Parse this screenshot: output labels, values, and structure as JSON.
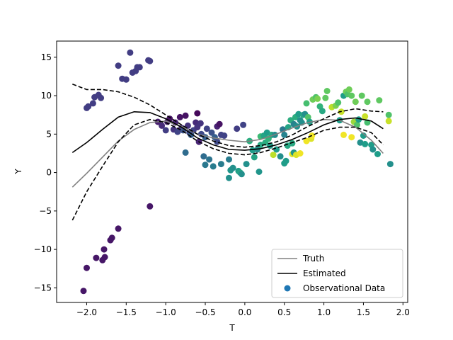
{
  "chart_data": {
    "type": "scatter",
    "xlabel": "T",
    "ylabel": "Y",
    "xlim": [
      -2.38,
      2.06
    ],
    "ylim": [
      -16.9,
      17.1
    ],
    "xticks": [
      -2.0,
      -1.5,
      -1.0,
      -0.5,
      0.0,
      0.5,
      1.0,
      1.5,
      2.0
    ],
    "xtick_labels": [
      "−2.0",
      "−1.5",
      "−1.0",
      "−0.5",
      "0.0",
      "0.5",
      "1.0",
      "1.5",
      "2.0"
    ],
    "yticks": [
      -15,
      -10,
      -5,
      0,
      5,
      10,
      15
    ],
    "ytick_labels": [
      "−15",
      "−10",
      "−5",
      "0",
      "5",
      "10",
      "15"
    ],
    "grid": false,
    "legend_position": "lower-right",
    "x_grid": [
      -2.18,
      -2.0,
      -1.8,
      -1.6,
      -1.4,
      -1.2,
      -1.0,
      -0.8,
      -0.6,
      -0.4,
      -0.2,
      0.0,
      0.2,
      0.4,
      0.6,
      0.8,
      1.0,
      1.2,
      1.4,
      1.6,
      1.75
    ],
    "series": [
      {
        "name": "Truth",
        "kind": "line",
        "color": "#808080",
        "style": "solid",
        "y": [
          -1.9,
          -0.1,
          2.0,
          4.1,
          5.6,
          6.5,
          6.7,
          6.0,
          5.0,
          4.5,
          4.2,
          4.0,
          4.3,
          5.0,
          5.8,
          6.5,
          6.9,
          6.8,
          5.9,
          4.2,
          2.5
        ]
      },
      {
        "name": "Estimated",
        "kind": "line",
        "color": "#000000",
        "style": "solid",
        "y": [
          2.6,
          3.9,
          5.6,
          7.2,
          7.9,
          7.8,
          7.0,
          5.9,
          4.5,
          3.6,
          3.0,
          2.9,
          3.1,
          3.6,
          4.3,
          5.2,
          6.2,
          6.9,
          7.1,
          6.7,
          5.7
        ]
      },
      {
        "name": "",
        "kind": "line",
        "color": "#000000",
        "style": "dashed",
        "y": [
          11.5,
          10.8,
          10.8,
          10.5,
          9.8,
          8.8,
          7.5,
          6.2,
          5.0,
          4.1,
          3.5,
          3.3,
          3.5,
          4.0,
          4.9,
          6.0,
          7.0,
          7.9,
          8.3,
          8.0,
          7.9
        ]
      },
      {
        "name": "",
        "kind": "line",
        "color": "#000000",
        "style": "dashed",
        "y": [
          -6.2,
          -2.5,
          0.8,
          4.0,
          6.2,
          6.9,
          6.5,
          5.5,
          4.1,
          3.1,
          2.5,
          2.3,
          2.6,
          3.2,
          3.9,
          4.6,
          5.5,
          5.9,
          5.9,
          5.2,
          3.6
        ]
      }
    ],
    "scatter": {
      "name": "Observational Data",
      "legend_color": "#1f77b4",
      "colormap": "viridis",
      "points": [
        [
          -2.0,
          8.4,
          0.18
        ],
        [
          -1.98,
          8.6,
          0.18
        ],
        [
          -1.92,
          9.0,
          0.18
        ],
        [
          -1.9,
          9.8,
          0.18
        ],
        [
          -1.85,
          10.1,
          0.18
        ],
        [
          -1.82,
          9.7,
          0.18
        ],
        [
          -1.6,
          13.9,
          0.18
        ],
        [
          -1.55,
          12.2,
          0.18
        ],
        [
          -1.5,
          12.1,
          0.18
        ],
        [
          -1.45,
          15.6,
          0.18
        ],
        [
          -1.42,
          13.0,
          0.18
        ],
        [
          -1.38,
          13.2,
          0.18
        ],
        [
          -1.36,
          13.7,
          0.18
        ],
        [
          -1.33,
          13.7,
          0.18
        ],
        [
          -1.22,
          14.6,
          0.18
        ],
        [
          -1.2,
          14.5,
          0.18
        ],
        [
          -2.04,
          -15.4,
          0.06
        ],
        [
          -2.0,
          -12.4,
          0.06
        ],
        [
          -1.88,
          -11.1,
          0.06
        ],
        [
          -1.8,
          -11.4,
          0.06
        ],
        [
          -1.78,
          -10.0,
          0.06
        ],
        [
          -1.77,
          -11.0,
          0.06
        ],
        [
          -1.7,
          -8.8,
          0.06
        ],
        [
          -1.68,
          -8.5,
          0.06
        ],
        [
          -1.6,
          -7.3,
          0.06
        ],
        [
          -1.2,
          -4.4,
          0.06
        ],
        [
          -1.1,
          6.6,
          0.08
        ],
        [
          -1.05,
          6.1,
          0.12
        ],
        [
          -1.0,
          5.5,
          0.18
        ],
        [
          -0.98,
          6.6,
          0.08
        ],
        [
          -0.95,
          7.0,
          0.05
        ],
        [
          -0.9,
          5.6,
          0.15
        ],
        [
          -0.88,
          6.5,
          0.1
        ],
        [
          -0.85,
          5.3,
          0.2
        ],
        [
          -0.82,
          7.2,
          0.05
        ],
        [
          -0.8,
          5.8,
          0.12
        ],
        [
          -0.78,
          5.5,
          0.25
        ],
        [
          -0.75,
          7.4,
          0.05
        ],
        [
          -0.75,
          2.6,
          0.35
        ],
        [
          -0.72,
          6.1,
          0.15
        ],
        [
          -0.7,
          5.2,
          0.22
        ],
        [
          -0.68,
          4.9,
          0.3
        ],
        [
          -0.65,
          5.5,
          0.2
        ],
        [
          -0.62,
          6.5,
          0.12
        ],
        [
          -0.6,
          5.9,
          0.15
        ],
        [
          -0.6,
          7.7,
          0.02
        ],
        [
          -0.58,
          4.0,
          0.1
        ],
        [
          -0.56,
          6.4,
          0.15
        ],
        [
          -0.55,
          5.0,
          0.22
        ],
        [
          -0.52,
          2.1,
          0.35
        ],
        [
          -0.5,
          1.0,
          0.4
        ],
        [
          -0.5,
          4.6,
          0.3
        ],
        [
          -0.48,
          5.7,
          0.2
        ],
        [
          -0.45,
          1.7,
          0.38
        ],
        [
          -0.42,
          5.2,
          0.25
        ],
        [
          -0.4,
          0.8,
          0.42
        ],
        [
          -0.38,
          4.6,
          0.3
        ],
        [
          -0.35,
          6.0,
          0.1
        ],
        [
          -0.35,
          4.0,
          0.22
        ],
        [
          -0.32,
          6.3,
          0.05
        ],
        [
          -0.3,
          1.1,
          0.42
        ],
        [
          -0.3,
          4.9,
          0.2
        ],
        [
          -0.26,
          4.8,
          0.2
        ],
        [
          -0.2,
          1.7,
          0.42
        ],
        [
          -0.2,
          -0.7,
          0.5
        ],
        [
          -0.18,
          0.3,
          0.52
        ],
        [
          -0.15,
          0.6,
          0.5
        ],
        [
          -0.1,
          5.7,
          0.18
        ],
        [
          -0.08,
          0.2,
          0.55
        ],
        [
          -0.06,
          0.0,
          0.58
        ],
        [
          -0.04,
          -0.2,
          0.5
        ],
        [
          -0.02,
          6.2,
          0.2
        ],
        [
          0.02,
          1.1,
          0.5
        ],
        [
          0.06,
          4.1,
          0.62
        ],
        [
          0.1,
          2.9,
          0.55
        ],
        [
          0.12,
          2.0,
          0.58
        ],
        [
          0.16,
          3.0,
          0.5
        ],
        [
          0.18,
          0.1,
          0.52
        ],
        [
          0.2,
          3.6,
          0.6
        ],
        [
          0.2,
          4.7,
          0.68
        ],
        [
          0.24,
          4.8,
          0.58
        ],
        [
          0.26,
          3.9,
          0.62
        ],
        [
          0.28,
          5.2,
          0.55
        ],
        [
          0.3,
          4.4,
          0.65
        ],
        [
          0.32,
          3.5,
          0.55
        ],
        [
          0.34,
          4.9,
          0.6
        ],
        [
          0.36,
          2.3,
          0.9
        ],
        [
          0.38,
          4.9,
          0.48
        ],
        [
          0.4,
          3.0,
          0.55
        ],
        [
          0.45,
          2.1,
          0.5
        ],
        [
          0.48,
          5.6,
          0.4
        ],
        [
          0.5,
          4.9,
          0.45
        ],
        [
          0.5,
          1.2,
          0.55
        ],
        [
          0.52,
          1.5,
          0.55
        ],
        [
          0.54,
          3.5,
          0.6
        ],
        [
          0.55,
          5.9,
          0.58
        ],
        [
          0.58,
          6.8,
          0.62
        ],
        [
          0.6,
          2.4,
          0.95
        ],
        [
          0.6,
          3.8,
          0.6
        ],
        [
          0.62,
          6.3,
          0.45
        ],
        [
          0.62,
          2.6,
          0.52
        ],
        [
          0.64,
          7.2,
          0.62
        ],
        [
          0.65,
          2.3,
          0.95
        ],
        [
          0.66,
          6.0,
          0.5
        ],
        [
          0.68,
          7.6,
          0.55
        ],
        [
          0.7,
          2.5,
          0.98
        ],
        [
          0.7,
          6.8,
          0.5
        ],
        [
          0.72,
          6.5,
          0.5
        ],
        [
          0.74,
          7.5,
          0.6
        ],
        [
          0.76,
          7.6,
          0.5
        ],
        [
          0.78,
          4.1,
          0.98
        ],
        [
          0.78,
          9.0,
          0.7
        ],
        [
          0.8,
          7.2,
          0.72
        ],
        [
          0.82,
          6.6,
          0.55
        ],
        [
          0.84,
          4.4,
          0.95
        ],
        [
          0.85,
          4.8,
          0.98
        ],
        [
          0.86,
          9.5,
          0.78
        ],
        [
          0.9,
          9.8,
          0.72
        ],
        [
          0.92,
          9.6,
          0.8
        ],
        [
          0.95,
          8.6,
          0.65
        ],
        [
          0.98,
          8.0,
          0.6
        ],
        [
          1.02,
          9.7,
          0.75
        ],
        [
          1.04,
          10.6,
          0.75
        ],
        [
          1.1,
          8.5,
          0.9
        ],
        [
          1.15,
          8.7,
          0.8
        ],
        [
          1.18,
          9.1,
          0.72
        ],
        [
          1.2,
          6.8,
          0.55
        ],
        [
          1.22,
          7.9,
          0.92
        ],
        [
          1.25,
          10.0,
          0.55
        ],
        [
          1.25,
          4.9,
          0.98
        ],
        [
          1.28,
          10.5,
          0.78
        ],
        [
          1.3,
          10.2,
          0.72
        ],
        [
          1.32,
          10.8,
          0.78
        ],
        [
          1.35,
          10.0,
          0.75
        ],
        [
          1.35,
          4.6,
          0.98
        ],
        [
          1.38,
          6.6,
          0.85
        ],
        [
          1.4,
          9.2,
          0.78
        ],
        [
          1.42,
          6.2,
          0.72
        ],
        [
          1.44,
          6.9,
          0.55
        ],
        [
          1.46,
          3.9,
          0.5
        ],
        [
          1.48,
          10.0,
          0.75
        ],
        [
          1.5,
          4.8,
          0.55
        ],
        [
          1.52,
          7.3,
          0.92
        ],
        [
          1.52,
          3.7,
          0.55
        ],
        [
          1.55,
          6.5,
          0.7
        ],
        [
          1.55,
          9.2,
          0.75
        ],
        [
          1.6,
          3.6,
          0.55
        ],
        [
          1.62,
          3.0,
          0.5
        ],
        [
          1.68,
          2.4,
          0.55
        ],
        [
          1.7,
          9.4,
          0.75
        ],
        [
          1.82,
          7.5,
          0.72
        ],
        [
          1.82,
          6.7,
          0.92
        ],
        [
          1.84,
          1.1,
          0.5
        ]
      ]
    },
    "legend": [
      {
        "label": "Truth",
        "kind": "line",
        "color": "#808080"
      },
      {
        "label": "Estimated",
        "kind": "line",
        "color": "#000000"
      },
      {
        "label": "Observational Data",
        "kind": "marker",
        "color": "#1f77b4"
      }
    ]
  }
}
